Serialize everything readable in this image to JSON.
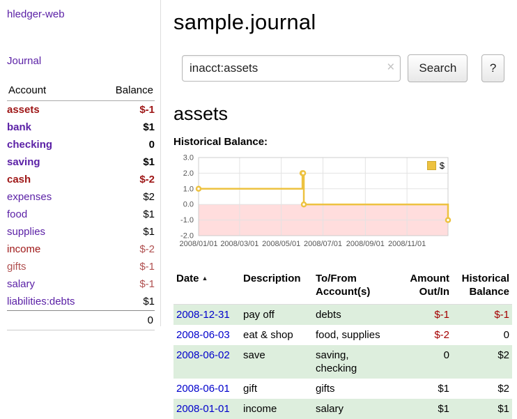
{
  "sidebar": {
    "app_title": "hledger-web",
    "nav": {
      "journal": "Journal"
    },
    "accounts_table": {
      "col_account": "Account",
      "col_balance": "Balance",
      "rows": [
        {
          "name": "assets",
          "balance": "$-1"
        },
        {
          "name": "bank",
          "balance": "$1"
        },
        {
          "name": "checking",
          "balance": "0"
        },
        {
          "name": "saving",
          "balance": "$1"
        },
        {
          "name": "cash",
          "balance": "$-2"
        },
        {
          "name": "expenses",
          "balance": "$2"
        },
        {
          "name": "food",
          "balance": "$1"
        },
        {
          "name": "supplies",
          "balance": "$1"
        },
        {
          "name": "income",
          "balance": "$-2"
        },
        {
          "name": "gifts",
          "balance": "$-1"
        },
        {
          "name": "salary",
          "balance": "$-1"
        },
        {
          "name": "liabilities:debts",
          "balance": "$1"
        }
      ],
      "total": "0"
    }
  },
  "main": {
    "title": "sample.journal",
    "search": {
      "value": "inacct:assets",
      "clear": "×",
      "button": "Search",
      "help": "?"
    },
    "account_heading": "assets",
    "chart_heading": "Historical Balance:",
    "register": {
      "headers": {
        "date": "Date",
        "description": "Description",
        "account": "To/From\nAccount(s)",
        "amount": "Amount\nOut/In",
        "balance": "Historical\nBalance"
      },
      "rows": [
        {
          "date": "2008-12-31",
          "description": "pay off",
          "account": "debts",
          "amount": "$-1",
          "balance": "$-1"
        },
        {
          "date": "2008-06-03",
          "description": "eat & shop",
          "account": "food, supplies",
          "amount": "$-2",
          "balance": "0"
        },
        {
          "date": "2008-06-02",
          "description": "save",
          "account": "saving,\nchecking",
          "amount": "0",
          "balance": "$2"
        },
        {
          "date": "2008-06-01",
          "description": "gift",
          "account": "gifts",
          "amount": "$1",
          "balance": "$2"
        },
        {
          "date": "2008-01-01",
          "description": "income",
          "account": "salary",
          "amount": "$1",
          "balance": "$1"
        }
      ]
    }
  },
  "colors": {
    "link_purple": "#5b21a6",
    "date_link_blue": "#0000cc",
    "negative_red": "#a40000",
    "row_green": "#ddeedd",
    "series_gold": "#edc240",
    "negative_region_pink": "#ffdddd"
  },
  "chart_data": {
    "type": "line",
    "title": "Historical Balance",
    "step": true,
    "series": [
      {
        "name": "$",
        "color": "#edc240",
        "points": [
          [
            "2008-01-01",
            1
          ],
          [
            "2008-06-01",
            2
          ],
          [
            "2008-06-02",
            2
          ],
          [
            "2008-06-03",
            0
          ],
          [
            "2008-12-31",
            -1
          ]
        ]
      }
    ],
    "x_range": [
      "2008-01-01",
      "2008-12-31"
    ],
    "ylim": [
      -2,
      3
    ],
    "y_ticks": [
      "3.0",
      "2.0",
      "1.0",
      "0.0",
      "-1.0",
      "-2.0"
    ],
    "x_ticks": [
      "2008/01/01",
      "2008/03/01",
      "2008/05/01",
      "2008/07/01",
      "2008/09/01",
      "2008/11/01"
    ],
    "negative_region_color": "#ffdddd",
    "grid": true,
    "legend": {
      "label": "$",
      "position": "top-right"
    }
  }
}
